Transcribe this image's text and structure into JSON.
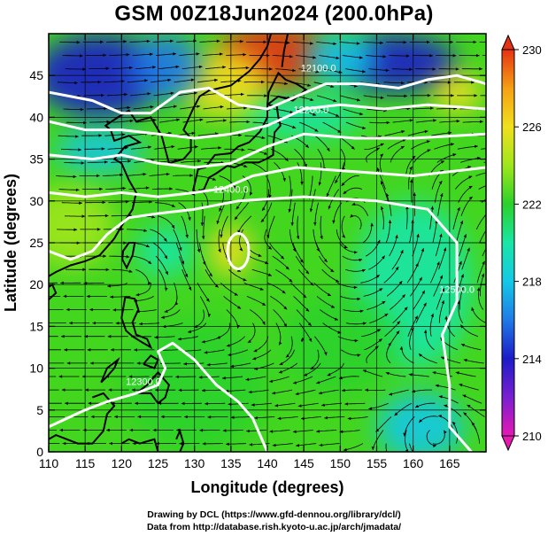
{
  "title": "GSM 00Z18Jun2024 (200.0hPa)",
  "credit_line1": "Drawing by DCL (https://www.gfd-dennou.org/library/dcl/)",
  "credit_line2": "Data from http://database.rish.kyoto-u.ac.jp/arch/jmadata/",
  "chart_data": {
    "type": "heatmap",
    "title": "GSM 00Z18Jun2024 (200.0hPa)",
    "xlabel": "Longitude (degrees)",
    "ylabel": "Latitude (degrees)",
    "xlim": [
      110,
      170
    ],
    "ylim": [
      0,
      50
    ],
    "x_ticks": [
      110,
      115,
      120,
      125,
      130,
      135,
      140,
      145,
      150,
      155,
      160,
      165
    ],
    "y_ticks": [
      0,
      5,
      10,
      15,
      20,
      25,
      30,
      35,
      40,
      45
    ],
    "grid": true,
    "colorbar": {
      "ticks": [
        210,
        214,
        218,
        222,
        226,
        230
      ],
      "range": [
        210,
        230
      ],
      "colors": [
        "#e619b3",
        "#7a1fd0",
        "#1c1cc8",
        "#1f7ae6",
        "#14c8e6",
        "#19e6a6",
        "#2bd12b",
        "#9ee61c",
        "#f0e01e",
        "#f5a014",
        "#e63214"
      ]
    },
    "contour_labels": [
      "12100.0",
      "12200.0",
      "12300.0",
      "12400.0",
      "12500.0"
    ],
    "field_blobs": [
      {
        "lon": 141,
        "lat": 47.5,
        "value": 229,
        "rlon": 8,
        "rlat": 4
      },
      {
        "lon": 134,
        "lat": 44,
        "value": 226,
        "rlon": 6,
        "rlat": 4
      },
      {
        "lon": 117,
        "lat": 45,
        "value": 214,
        "rlon": 9,
        "rlat": 5
      },
      {
        "lon": 126,
        "lat": 46,
        "value": 215,
        "rlon": 5,
        "rlat": 4
      },
      {
        "lon": 157,
        "lat": 46.5,
        "value": 214,
        "rlon": 9,
        "rlat": 3.5
      },
      {
        "lon": 150,
        "lat": 47,
        "value": 217,
        "rlon": 5,
        "rlat": 3
      },
      {
        "lon": 166,
        "lat": 43,
        "value": 225,
        "rlon": 3.5,
        "rlat": 2.5
      },
      {
        "lon": 145,
        "lat": 40,
        "value": 219,
        "rlon": 8,
        "rlat": 2.5
      },
      {
        "lon": 117,
        "lat": 36,
        "value": 218,
        "rlon": 6,
        "rlat": 2.5
      },
      {
        "lon": 113,
        "lat": 27,
        "value": 224,
        "rlon": 6,
        "rlat": 5
      },
      {
        "lon": 135,
        "lat": 24,
        "value": 225,
        "rlon": 3,
        "rlat": 3
      },
      {
        "lon": 126,
        "lat": 24,
        "value": 219,
        "rlon": 4,
        "rlat": 3
      },
      {
        "lon": 130,
        "lat": 8,
        "value": 221,
        "rlon": 10,
        "rlat": 8
      },
      {
        "lon": 160,
        "lat": 20,
        "value": 220,
        "rlon": 8,
        "rlat": 10
      },
      {
        "lon": 161,
        "lat": 3,
        "value": 217,
        "rlon": 6,
        "rlat": 4
      },
      {
        "lon": 150,
        "lat": 13,
        "value": 222,
        "rlon": 8,
        "rlat": 6
      }
    ],
    "vortices": [
      {
        "lon": 136,
        "lat": 24.5,
        "r": 2.0
      },
      {
        "lon": 152,
        "lat": 26,
        "r": 3.5
      },
      {
        "lon": 163,
        "lat": 2.5,
        "r": 1.5
      }
    ]
  }
}
